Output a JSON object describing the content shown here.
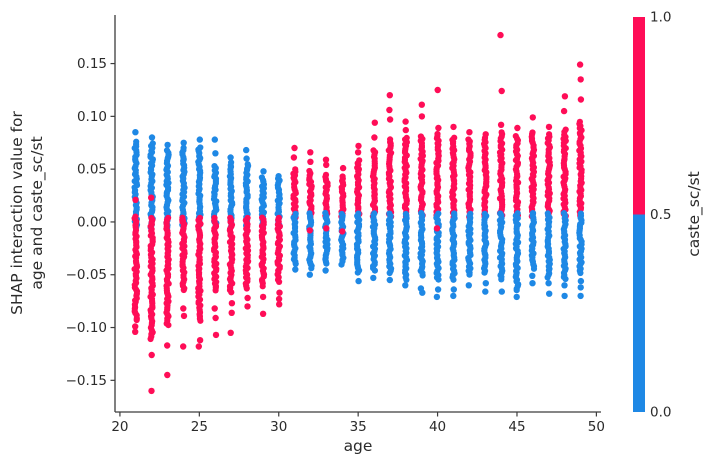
{
  "chart_data": {
    "type": "scatter",
    "title": "",
    "xlabel": "age",
    "ylabel_lines": [
      "SHAP interaction value for",
      "age and caste_sc/st"
    ],
    "xlim": [
      19.69,
      50.29
    ],
    "ylim": [
      -0.18,
      0.196
    ],
    "x_ticks": [
      20,
      25,
      30,
      35,
      40,
      45,
      50
    ],
    "y_ticks": [
      -0.15,
      -0.1,
      -0.05,
      0.0,
      0.05,
      0.1,
      0.15
    ],
    "grid": false,
    "legend": "colorbar-right",
    "colors": {
      "pink": "#ff0d57",
      "blue": "#1e88e5",
      "axis": "#3c3c3c",
      "text": "#2b2b2b"
    },
    "colorbar": {
      "label": "caste_sc/st",
      "ticks": [
        0.0,
        0.5,
        1.0
      ],
      "boundary": 0.5,
      "low_color": "#1e88e5",
      "high_color": "#ff0d57"
    },
    "columns": [
      {
        "age": 21,
        "segments": [
          {
            "color": "blue",
            "range": [
              -0.006,
              0.076
            ]
          },
          {
            "color": "pink",
            "range": [
              -0.093,
              0.005
            ]
          }
        ],
        "dots": [
          {
            "color": "blue",
            "value": 0.085
          },
          {
            "color": "pink",
            "value": -0.099
          },
          {
            "color": "pink",
            "value": -0.104
          },
          {
            "color": "pink",
            "value": 0.021
          }
        ]
      },
      {
        "age": 22,
        "segments": [
          {
            "color": "blue",
            "range": [
              -0.006,
              0.074
            ]
          },
          {
            "color": "pink",
            "range": [
              -0.112,
              0.004
            ]
          }
        ],
        "dots": [
          {
            "color": "blue",
            "value": 0.08
          },
          {
            "color": "pink",
            "value": -0.126
          },
          {
            "color": "pink",
            "value": -0.16
          },
          {
            "color": "pink",
            "value": 0.023
          }
        ]
      },
      {
        "age": 23,
        "segments": [
          {
            "color": "blue",
            "range": [
              -0.005,
              0.068
            ]
          },
          {
            "color": "pink",
            "range": [
              -0.1,
              0.004
            ]
          }
        ],
        "dots": [
          {
            "color": "blue",
            "value": 0.073
          },
          {
            "color": "pink",
            "value": -0.117
          },
          {
            "color": "pink",
            "value": -0.145
          }
        ]
      },
      {
        "age": 24,
        "segments": [
          {
            "color": "blue",
            "range": [
              -0.005,
              0.07
            ]
          },
          {
            "color": "pink",
            "range": [
              -0.065,
              0.004
            ]
          }
        ],
        "dots": [
          {
            "color": "blue",
            "value": 0.075
          },
          {
            "color": "pink",
            "value": -0.082
          },
          {
            "color": "pink",
            "value": -0.089
          },
          {
            "color": "pink",
            "value": -0.118
          },
          {
            "color": "pink",
            "value": 0.001
          }
        ]
      },
      {
        "age": 25,
        "segments": [
          {
            "color": "blue",
            "range": [
              -0.005,
              0.071
            ]
          },
          {
            "color": "pink",
            "range": [
              -0.094,
              0.004
            ]
          }
        ],
        "dots": [
          {
            "color": "blue",
            "value": 0.078
          },
          {
            "color": "pink",
            "value": -0.112
          },
          {
            "color": "pink",
            "value": -0.118
          }
        ]
      },
      {
        "age": 26,
        "segments": [
          {
            "color": "blue",
            "range": [
              -0.005,
              0.053
            ]
          },
          {
            "color": "pink",
            "range": [
              -0.065,
              0.004
            ]
          }
        ],
        "dots": [
          {
            "color": "blue",
            "value": 0.078
          },
          {
            "color": "blue",
            "value": 0.065
          },
          {
            "color": "pink",
            "value": -0.082
          },
          {
            "color": "pink",
            "value": -0.091
          },
          {
            "color": "pink",
            "value": -0.107
          }
        ]
      },
      {
        "age": 27,
        "segments": [
          {
            "color": "blue",
            "range": [
              -0.005,
              0.056
            ]
          },
          {
            "color": "pink",
            "range": [
              -0.068,
              0.004
            ]
          }
        ],
        "dots": [
          {
            "color": "blue",
            "value": 0.061
          },
          {
            "color": "pink",
            "value": -0.077
          },
          {
            "color": "pink",
            "value": -0.086
          },
          {
            "color": "pink",
            "value": -0.105
          }
        ]
      },
      {
        "age": 28,
        "segments": [
          {
            "color": "blue",
            "range": [
              -0.005,
              0.055
            ]
          },
          {
            "color": "pink",
            "range": [
              -0.064,
              0.004
            ]
          }
        ],
        "dots": [
          {
            "color": "blue",
            "value": 0.068
          },
          {
            "color": "blue",
            "value": 0.06
          },
          {
            "color": "pink",
            "value": -0.072
          },
          {
            "color": "pink",
            "value": -0.08
          }
        ]
      },
      {
        "age": 29,
        "segments": [
          {
            "color": "blue",
            "range": [
              -0.004,
              0.042
            ]
          },
          {
            "color": "pink",
            "range": [
              -0.062,
              0.004
            ]
          }
        ],
        "dots": [
          {
            "color": "blue",
            "value": 0.048
          },
          {
            "color": "pink",
            "value": -0.071
          },
          {
            "color": "pink",
            "value": -0.087
          }
        ]
      },
      {
        "age": 30,
        "segments": [
          {
            "color": "blue",
            "range": [
              -0.004,
              0.043
            ]
          },
          {
            "color": "pink",
            "range": [
              -0.058,
              0.004
            ]
          }
        ],
        "dots": [
          {
            "color": "pink",
            "value": -0.067
          },
          {
            "color": "pink",
            "value": -0.073
          },
          {
            "color": "pink",
            "value": -0.078
          }
        ]
      },
      {
        "age": 31,
        "segments": [
          {
            "color": "pink",
            "range": [
              0.004,
              0.05
            ]
          },
          {
            "color": "blue",
            "range": [
              -0.04,
              0.008
            ]
          }
        ],
        "dots": [
          {
            "color": "pink",
            "value": 0.061
          },
          {
            "color": "pink",
            "value": 0.07
          },
          {
            "color": "blue",
            "value": -0.045
          }
        ]
      },
      {
        "age": 32,
        "segments": [
          {
            "color": "pink",
            "range": [
              0.004,
              0.048
            ]
          },
          {
            "color": "blue",
            "range": [
              -0.045,
              0.008
            ]
          }
        ],
        "dots": [
          {
            "color": "pink",
            "value": 0.057
          },
          {
            "color": "pink",
            "value": 0.066
          },
          {
            "color": "pink",
            "value": -0.008
          },
          {
            "color": "blue",
            "value": -0.05
          }
        ]
      },
      {
        "age": 33,
        "segments": [
          {
            "color": "pink",
            "range": [
              0.004,
              0.045
            ]
          },
          {
            "color": "blue",
            "range": [
              -0.04,
              0.008
            ]
          }
        ],
        "dots": [
          {
            "color": "pink",
            "value": 0.054
          },
          {
            "color": "pink",
            "value": 0.059
          },
          {
            "color": "pink",
            "value": -0.006
          },
          {
            "color": "blue",
            "value": -0.046
          }
        ]
      },
      {
        "age": 34,
        "segments": [
          {
            "color": "pink",
            "range": [
              0.004,
              0.043
            ]
          },
          {
            "color": "blue",
            "range": [
              -0.042,
              0.008
            ]
          }
        ],
        "dots": [
          {
            "color": "pink",
            "value": 0.051
          },
          {
            "color": "pink",
            "value": -0.009
          }
        ]
      },
      {
        "age": 35,
        "segments": [
          {
            "color": "pink",
            "range": [
              0.004,
              0.058
            ]
          },
          {
            "color": "blue",
            "range": [
              -0.05,
              0.008
            ]
          }
        ],
        "dots": [
          {
            "color": "pink",
            "value": 0.066
          },
          {
            "color": "pink",
            "value": 0.072
          },
          {
            "color": "blue",
            "value": -0.056
          }
        ]
      },
      {
        "age": 36,
        "segments": [
          {
            "color": "pink",
            "range": [
              0.004,
              0.068
            ]
          },
          {
            "color": "blue",
            "range": [
              -0.048,
              0.008
            ]
          }
        ],
        "dots": [
          {
            "color": "pink",
            "value": 0.08
          },
          {
            "color": "pink",
            "value": 0.094
          },
          {
            "color": "blue",
            "value": -0.053
          }
        ]
      },
      {
        "age": 37,
        "segments": [
          {
            "color": "pink",
            "range": [
              0.004,
              0.078
            ]
          },
          {
            "color": "blue",
            "range": [
              -0.05,
              0.008
            ]
          }
        ],
        "dots": [
          {
            "color": "pink",
            "value": 0.097
          },
          {
            "color": "pink",
            "value": 0.106
          },
          {
            "color": "pink",
            "value": 0.12
          },
          {
            "color": "blue",
            "value": -0.055
          }
        ]
      },
      {
        "age": 38,
        "segments": [
          {
            "color": "pink",
            "range": [
              0.004,
              0.08
            ]
          },
          {
            "color": "blue",
            "range": [
              -0.055,
              0.008
            ]
          }
        ],
        "dots": [
          {
            "color": "pink",
            "value": 0.087
          },
          {
            "color": "pink",
            "value": 0.095
          },
          {
            "color": "blue",
            "value": -0.06
          }
        ]
      },
      {
        "age": 39,
        "segments": [
          {
            "color": "pink",
            "range": [
              0.004,
              0.081
            ]
          },
          {
            "color": "blue",
            "range": [
              -0.052,
              0.008
            ]
          }
        ],
        "dots": [
          {
            "color": "pink",
            "value": 0.1
          },
          {
            "color": "pink",
            "value": 0.111
          },
          {
            "color": "blue",
            "value": -0.063
          },
          {
            "color": "blue",
            "value": -0.067
          }
        ]
      },
      {
        "age": 40,
        "segments": [
          {
            "color": "pink",
            "range": [
              0.004,
              0.083
            ]
          },
          {
            "color": "blue",
            "range": [
              -0.055,
              0.008
            ]
          }
        ],
        "dots": [
          {
            "color": "pink",
            "value": 0.089
          },
          {
            "color": "pink",
            "value": 0.125
          },
          {
            "color": "pink",
            "value": -0.006
          },
          {
            "color": "blue",
            "value": -0.064
          },
          {
            "color": "blue",
            "value": -0.071
          }
        ]
      },
      {
        "age": 41,
        "segments": [
          {
            "color": "pink",
            "range": [
              0.004,
              0.08
            ]
          },
          {
            "color": "blue",
            "range": [
              -0.056,
              0.008
            ]
          }
        ],
        "dots": [
          {
            "color": "pink",
            "value": 0.09
          },
          {
            "color": "blue",
            "value": -0.064
          },
          {
            "color": "blue",
            "value": -0.07
          }
        ]
      },
      {
        "age": 42,
        "segments": [
          {
            "color": "pink",
            "range": [
              0.004,
              0.078
            ]
          },
          {
            "color": "blue",
            "range": [
              -0.052,
              0.008
            ]
          }
        ],
        "dots": [
          {
            "color": "pink",
            "value": 0.085
          },
          {
            "color": "blue",
            "value": -0.06
          }
        ]
      },
      {
        "age": 43,
        "segments": [
          {
            "color": "pink",
            "range": [
              0.004,
              0.08
            ]
          },
          {
            "color": "blue",
            "range": [
              -0.05,
              0.008
            ]
          }
        ],
        "dots": [
          {
            "color": "pink",
            "value": 0.083
          },
          {
            "color": "blue",
            "value": -0.058
          },
          {
            "color": "blue",
            "value": -0.066
          }
        ]
      },
      {
        "age": 44,
        "segments": [
          {
            "color": "pink",
            "range": [
              0.004,
              0.085
            ]
          },
          {
            "color": "blue",
            "range": [
              -0.055,
              0.008
            ]
          }
        ],
        "dots": [
          {
            "color": "pink",
            "value": 0.092
          },
          {
            "color": "pink",
            "value": 0.124
          },
          {
            "color": "pink",
            "value": 0.177
          },
          {
            "color": "blue",
            "value": -0.066
          }
        ]
      },
      {
        "age": 45,
        "segments": [
          {
            "color": "pink",
            "range": [
              0.004,
              0.081
            ]
          },
          {
            "color": "blue",
            "range": [
              -0.066,
              0.008
            ]
          }
        ],
        "dots": [
          {
            "color": "pink",
            "value": 0.089
          },
          {
            "color": "blue",
            "value": -0.071
          }
        ]
      },
      {
        "age": 46,
        "segments": [
          {
            "color": "pink",
            "range": [
              0.004,
              0.085
            ]
          },
          {
            "color": "blue",
            "range": [
              -0.045,
              0.008
            ]
          }
        ],
        "dots": [
          {
            "color": "pink",
            "value": 0.099
          },
          {
            "color": "blue",
            "value": -0.051
          },
          {
            "color": "blue",
            "value": -0.058
          }
        ]
      },
      {
        "age": 47,
        "segments": [
          {
            "color": "pink",
            "range": [
              0.004,
              0.083
            ]
          },
          {
            "color": "blue",
            "range": [
              -0.053,
              0.008
            ]
          }
        ],
        "dots": [
          {
            "color": "pink",
            "value": 0.09
          },
          {
            "color": "blue",
            "value": -0.058
          },
          {
            "color": "blue",
            "value": -0.068
          }
        ]
      },
      {
        "age": 48,
        "segments": [
          {
            "color": "pink",
            "range": [
              0.004,
              0.087
            ]
          },
          {
            "color": "blue",
            "range": [
              -0.055,
              0.008
            ]
          }
        ],
        "dots": [
          {
            "color": "pink",
            "value": 0.105
          },
          {
            "color": "pink",
            "value": 0.119
          },
          {
            "color": "blue",
            "value": -0.06
          },
          {
            "color": "blue",
            "value": -0.07
          }
        ]
      },
      {
        "age": 49,
        "segments": [
          {
            "color": "pink",
            "range": [
              0.004,
              0.095
            ]
          },
          {
            "color": "blue",
            "range": [
              -0.05,
              0.008
            ]
          }
        ],
        "dots": [
          {
            "color": "pink",
            "value": 0.116
          },
          {
            "color": "pink",
            "value": 0.135
          },
          {
            "color": "pink",
            "value": 0.149
          },
          {
            "color": "blue",
            "value": -0.056
          },
          {
            "color": "blue",
            "value": -0.062
          },
          {
            "color": "blue",
            "value": -0.07
          }
        ]
      }
    ]
  }
}
